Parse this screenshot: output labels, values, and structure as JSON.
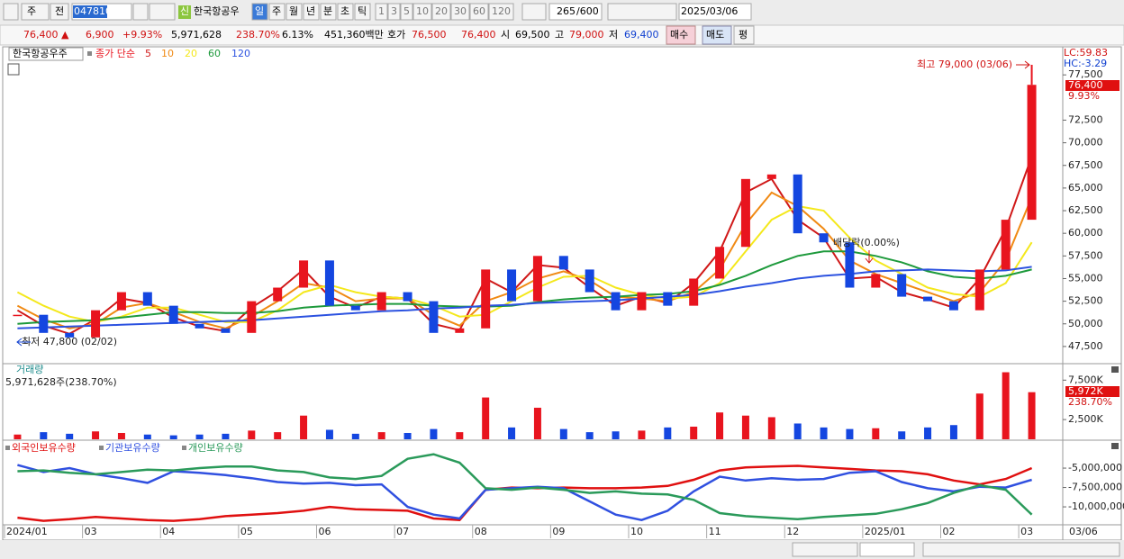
{
  "toolbar": {
    "market": "주",
    "prev": "전",
    "code": "047810",
    "badge": "신",
    "name": "한국항공우",
    "periods": [
      "일",
      "주",
      "월",
      "년",
      "분",
      "초",
      "틱"
    ],
    "intervals": [
      "1",
      "3",
      "5",
      "10",
      "20",
      "30",
      "60",
      "120"
    ],
    "count": "265",
    "max": "/600",
    "date": "2025/03/06"
  },
  "quote": {
    "price": "76,400 ▲",
    "change": "6,900",
    "change_pct": "+9.93%",
    "volume": "5,971,628",
    "volume_ratio": "238.70%",
    "turnover": "6.13%",
    "amount": "451,360백만",
    "ask_label": "호가",
    "ask": "76,500",
    "bid": "76,400",
    "open_label": "시",
    "open": "69,500",
    "high_label": "고",
    "high": "79,000",
    "low_label": "저",
    "low": "69,400",
    "buy": "매수",
    "sell": "매도",
    "eval": "평"
  },
  "chart_data": [
    {
      "type": "candlestick",
      "title": "한국항공우주",
      "subtitle": "종가 단순",
      "up_color": "#e8141e",
      "down_color": "#1446e0",
      "close": [
        51000,
        49000,
        48500,
        51500,
        53500,
        52000,
        50000,
        49500,
        49000,
        52500,
        54000,
        57000,
        52000,
        51500,
        53500,
        52500,
        49000,
        49500,
        56000,
        52500,
        57500,
        56000,
        53500,
        51500,
        53500,
        52000,
        55000,
        58500,
        66000,
        66500,
        60000,
        59000,
        54000,
        55500,
        53000,
        52500,
        51500,
        56000,
        61500,
        76400
      ],
      "series": [
        {
          "name": "5",
          "color": "#d01818",
          "values": [
            51500,
            49800,
            48900,
            50500,
            52800,
            52300,
            50700,
            49700,
            49200,
            51800,
            53600,
            56000,
            53000,
            51800,
            53000,
            52800,
            50000,
            49300,
            55000,
            53500,
            56500,
            56200,
            54000,
            52000,
            53000,
            52300,
            54500,
            58000,
            64500,
            66000,
            61500,
            59500,
            55000,
            55200,
            53500,
            52700,
            51800,
            55000,
            60500,
            68500
          ]
        },
        {
          "name": "10",
          "color": "#f08a14",
          "values": [
            52000,
            50500,
            49500,
            50000,
            51800,
            52300,
            51300,
            50200,
            49500,
            50800,
            52500,
            54500,
            54000,
            52500,
            52800,
            52800,
            51000,
            49800,
            52500,
            53500,
            55000,
            55800,
            54800,
            53000,
            52800,
            52500,
            53500,
            56000,
            61000,
            64500,
            63000,
            60500,
            57000,
            55500,
            54500,
            53500,
            52500,
            53500,
            57000,
            64000
          ]
        },
        {
          "name": "20",
          "color": "#f4e81c",
          "values": [
            53500,
            52000,
            50800,
            50200,
            50800,
            51800,
            51800,
            51000,
            50200,
            50200,
            51500,
            53500,
            54300,
            53500,
            53000,
            52800,
            52000,
            50800,
            51000,
            52500,
            54000,
            55200,
            55300,
            54000,
            53200,
            52800,
            53000,
            54500,
            58000,
            61500,
            63000,
            62500,
            59500,
            57000,
            55500,
            54000,
            53300,
            53000,
            54500,
            59000
          ]
        },
        {
          "name": "60",
          "color": "#1e9a3c",
          "values": [
            50000,
            50200,
            50300,
            50400,
            50700,
            51000,
            51300,
            51300,
            51200,
            51200,
            51400,
            51800,
            52000,
            52100,
            52200,
            52200,
            52000,
            51900,
            51900,
            52000,
            52400,
            52700,
            52900,
            53000,
            53200,
            53300,
            53600,
            54300,
            55300,
            56500,
            57500,
            58000,
            58000,
            57500,
            56800,
            55800,
            55200,
            55000,
            55300,
            56000
          ]
        },
        {
          "name": "120",
          "color": "#2c52e0",
          "values": [
            49500,
            49600,
            49700,
            49800,
            49900,
            50000,
            50100,
            50200,
            50300,
            50400,
            50600,
            50800,
            51000,
            51200,
            51400,
            51500,
            51700,
            51800,
            52000,
            52100,
            52300,
            52400,
            52500,
            52600,
            52800,
            53000,
            53200,
            53600,
            54100,
            54500,
            55000,
            55300,
            55500,
            55800,
            55900,
            56000,
            55900,
            55800,
            55900,
            56300
          ]
        }
      ],
      "ylim": [
        45700,
        80600
      ],
      "yticks": [
        {
          "value": 47500,
          "label": "47,500"
        },
        {
          "value": 50000,
          "label": "50,000"
        },
        {
          "value": 52500,
          "label": "52,500"
        },
        {
          "value": 55000,
          "label": "55,000"
        },
        {
          "value": 57500,
          "label": "57,500"
        },
        {
          "value": 60000,
          "label": "60,000"
        },
        {
          "value": 62500,
          "label": "62,500"
        },
        {
          "value": 65000,
          "label": "65,000"
        },
        {
          "value": 67500,
          "label": "67,500"
        },
        {
          "value": 70000,
          "label": "70,000"
        },
        {
          "value": 72500,
          "label": "72,500"
        },
        {
          "value": 77500,
          "label": "77,500"
        }
      ],
      "annotations": {
        "lc": "LC:59.83",
        "hc": "HC:-3.29",
        "last": "76,400",
        "last_pct": "9.93%",
        "high": "최고 79,000 (03/06)",
        "low": "최저 47,800 (02/02)",
        "ex_dividend": "배당락(0.00%)"
      }
    },
    {
      "type": "bar",
      "title": "거래량",
      "subtitle": "5,971,628주(238.70%)",
      "values": [
        600,
        900,
        700,
        1000,
        800,
        600,
        500,
        600,
        700,
        1100,
        900,
        3000,
        1200,
        700,
        900,
        800,
        1300,
        900,
        5300,
        1500,
        4000,
        1300,
        900,
        1000,
        1100,
        1500,
        1600,
        3400,
        3000,
        2800,
        2000,
        1500,
        1300,
        1400,
        1000,
        1500,
        1800,
        5800,
        8500,
        5972
      ],
      "ylim": [
        0,
        9360
      ],
      "yticks": [
        {
          "value": 2500,
          "label": "2,500K"
        },
        {
          "value": 7500,
          "label": "7,500K"
        }
      ],
      "annotations": {
        "last": "5,972K",
        "last_pct": "238.70%"
      }
    },
    {
      "type": "line",
      "categories": [
        "2024/01",
        null,
        null,
        "03",
        null,
        null,
        "04",
        null,
        null,
        "05",
        null,
        null,
        "06",
        null,
        null,
        "07",
        null,
        null,
        "08",
        null,
        null,
        "09",
        null,
        null,
        "10",
        null,
        null,
        "11",
        null,
        null,
        "12",
        null,
        null,
        "2025/01",
        null,
        null,
        "02",
        null,
        null,
        "03"
      ],
      "x_end_label": "03/06",
      "series": [
        {
          "name": "외국인보유수량",
          "color": "#e01010",
          "values": [
            -11400000,
            -11800000,
            -11600000,
            -11300000,
            -11500000,
            -11700000,
            -11800000,
            -11600000,
            -11200000,
            -11000000,
            -10800000,
            -10500000,
            -10000000,
            -10300000,
            -10400000,
            -10500000,
            -11500000,
            -11700000,
            -7800000,
            -7500000,
            -7600000,
            -7500000,
            -7600000,
            -7600000,
            -7500000,
            -7300000,
            -6500000,
            -5300000,
            -4900000,
            -4800000,
            -4700000,
            -4900000,
            -5100000,
            -5300000,
            -5400000,
            -5800000,
            -6600000,
            -7100000,
            -6400000,
            -5000000
          ]
        },
        {
          "name": "기관보유수량",
          "color": "#3050e0",
          "values": [
            -4600000,
            -5500000,
            -5000000,
            -5800000,
            -6300000,
            -6900000,
            -5400000,
            -5600000,
            -5900000,
            -6300000,
            -6800000,
            -7000000,
            -6900000,
            -7200000,
            -7100000,
            -10000000,
            -11000000,
            -11500000,
            -7800000,
            -7600000,
            -7400000,
            -7600000,
            -9300000,
            -11000000,
            -11700000,
            -10500000,
            -8000000,
            -6100000,
            -6600000,
            -6300000,
            -6500000,
            -6400000,
            -5600000,
            -5400000,
            -6800000,
            -7600000,
            -8000000,
            -7400000,
            -7500000,
            -6500000
          ]
        },
        {
          "name": "개인보유수량",
          "color": "#2a9a5a",
          "values": [
            -5400000,
            -5300000,
            -5600000,
            -5800000,
            -5500000,
            -5200000,
            -5300000,
            -5000000,
            -4800000,
            -4800000,
            -5300000,
            -5500000,
            -6200000,
            -6400000,
            -6000000,
            -3800000,
            -3200000,
            -4300000,
            -7600000,
            -7800000,
            -7500000,
            -7800000,
            -8200000,
            -8000000,
            -8300000,
            -8400000,
            -9100000,
            -10800000,
            -11200000,
            -11400000,
            -11600000,
            -11300000,
            -11100000,
            -10900000,
            -10300000,
            -9500000,
            -8200000,
            -7200000,
            -7800000,
            -11000000
          ]
        }
      ],
      "ylim": [
        -12200000,
        -1740000
      ],
      "yticks": [
        {
          "value": -5000000,
          "label": "-5,000,000"
        },
        {
          "value": -7500000,
          "label": "-7,500,000"
        },
        {
          "value": -10000000,
          "label": "-10,000,000"
        }
      ]
    }
  ]
}
